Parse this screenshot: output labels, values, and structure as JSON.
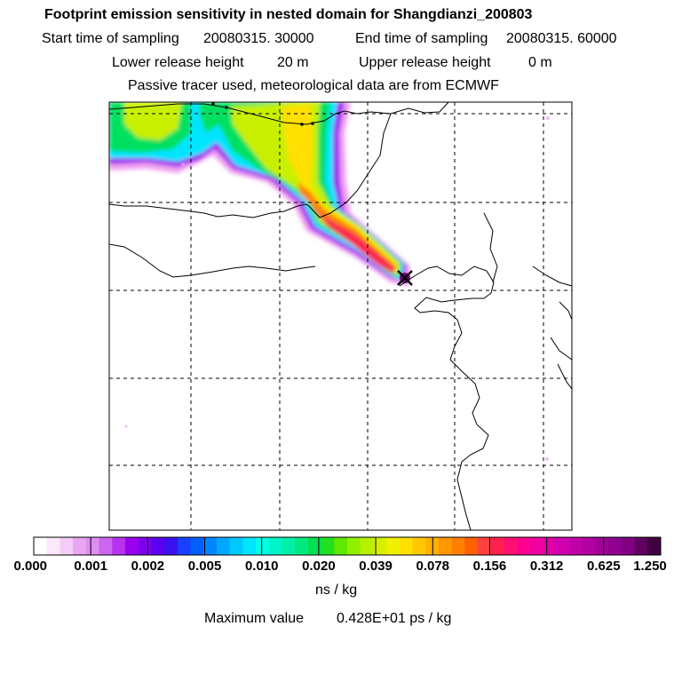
{
  "title": "Footprint emission sensitivity in nested domain for Shangdianzi_200803",
  "sampling": {
    "start_label": "Start time of sampling",
    "start_value": "20080315. 30000",
    "end_label": "End time of sampling",
    "end_value": "20080315. 60000"
  },
  "release": {
    "lower_label": "Lower release height",
    "lower_value": "20 m",
    "upper_label": "Upper release height",
    "upper_value": "0 m"
  },
  "info_line": "Passive tracer used, meteorological data are from ECMWF",
  "colorbar": {
    "tick_labels": [
      "0.000",
      "0.001",
      "0.002",
      "0.005",
      "0.010",
      "0.020",
      "0.039",
      "0.078",
      "0.156",
      "0.312",
      "0.625",
      "1.250"
    ],
    "colors": [
      "#ffffff",
      "#fbe8fb",
      "#f5ccf7",
      "#e9a6f2",
      "#e08ef0",
      "#cc66ee",
      "#b833f0",
      "#9900ee",
      "#7f00ee",
      "#5a00ee",
      "#3a10f0",
      "#1a40ff",
      "#0060ff",
      "#0085ff",
      "#00a8ff",
      "#00c8ff",
      "#00e5ff",
      "#00ffe6",
      "#00f5c8",
      "#00f0aa",
      "#00e880",
      "#00e055",
      "#20e020",
      "#60e800",
      "#90f000",
      "#b8f000",
      "#d8f000",
      "#f0f000",
      "#ffe000",
      "#ffc800",
      "#ffb000",
      "#ff9800",
      "#ff8000",
      "#ff6000",
      "#ff4040",
      "#ff2050",
      "#ff1070",
      "#ff0090",
      "#f000a0",
      "#e000a8",
      "#d000b0",
      "#c000a8",
      "#b000a0",
      "#a00098",
      "#900090",
      "#800080",
      "#600060",
      "#400040"
    ],
    "unit": "ns / kg"
  },
  "maximum": {
    "label": "Maximum value",
    "value": "0.428E+01 ps / kg"
  },
  "map": {
    "receptor_marker": "x-marker",
    "plume_colors": [
      "#f0a0f0",
      "#a020f0",
      "#00e5ff",
      "#00e060",
      "#c8f000",
      "#ffe000",
      "#ff8000",
      "#ff2050",
      "#800080"
    ]
  }
}
